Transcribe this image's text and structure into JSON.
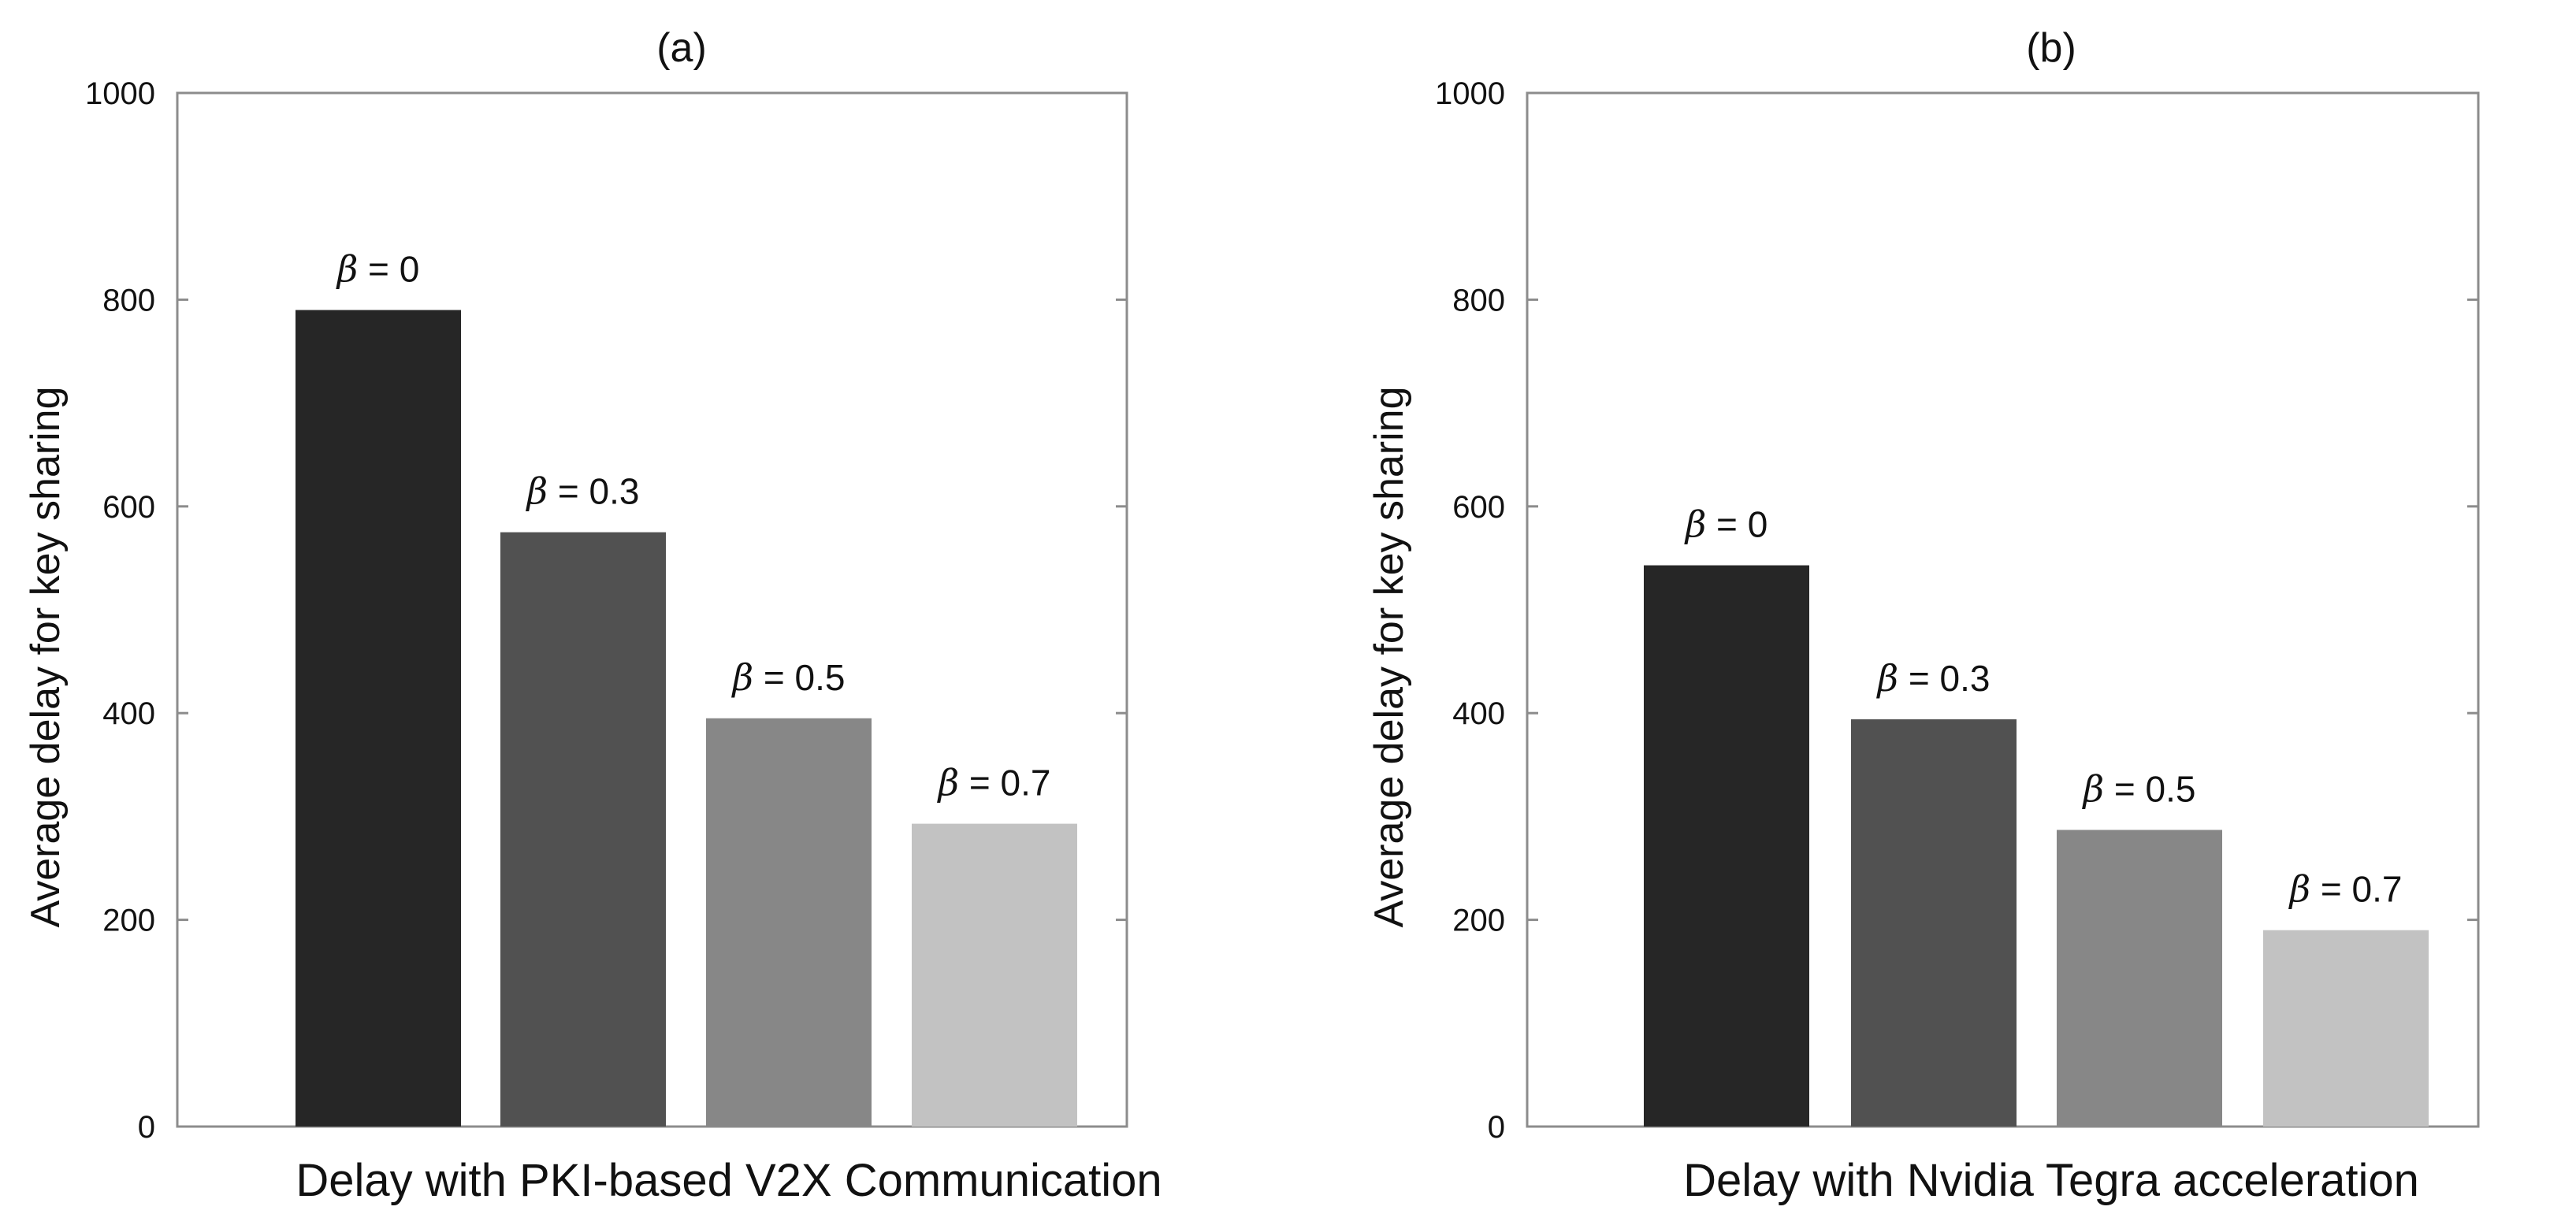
{
  "chart_data": [
    {
      "type": "bar",
      "title": "(a)",
      "xlabel": "Delay with PKI-based V2X Communication",
      "ylabel": "Average delay for key sharing",
      "ylim": [
        0,
        1000
      ],
      "yticks": [
        0,
        200,
        400,
        600,
        800,
        1000
      ],
      "categories": [
        "β = 0",
        "β = 0.3",
        "β = 0.5",
        "β = 0.7"
      ],
      "values": [
        790,
        575,
        395,
        293
      ],
      "colors": [
        "#262626",
        "#515151",
        "#878787",
        "#c2c2c2"
      ]
    },
    {
      "type": "bar",
      "title": "(b)",
      "xlabel": "Delay with Nvidia Tegra acceleration",
      "ylabel": "Average delay for key sharing",
      "ylim": [
        0,
        1000
      ],
      "yticks": [
        0,
        200,
        400,
        600,
        800,
        1000
      ],
      "categories": [
        "β = 0",
        "β = 0.3",
        "β = 0.5",
        "β = 0.7"
      ],
      "values": [
        543,
        394,
        287,
        190
      ],
      "colors": [
        "#262626",
        "#515151",
        "#878787",
        "#c2c2c2"
      ]
    }
  ],
  "beta_symbol": "β",
  "equals": "=",
  "bar_values_text": [
    [
      "0",
      "0.3",
      "0.5",
      "0.7"
    ],
    [
      "0",
      "0.3",
      "0.5",
      "0.7"
    ]
  ]
}
